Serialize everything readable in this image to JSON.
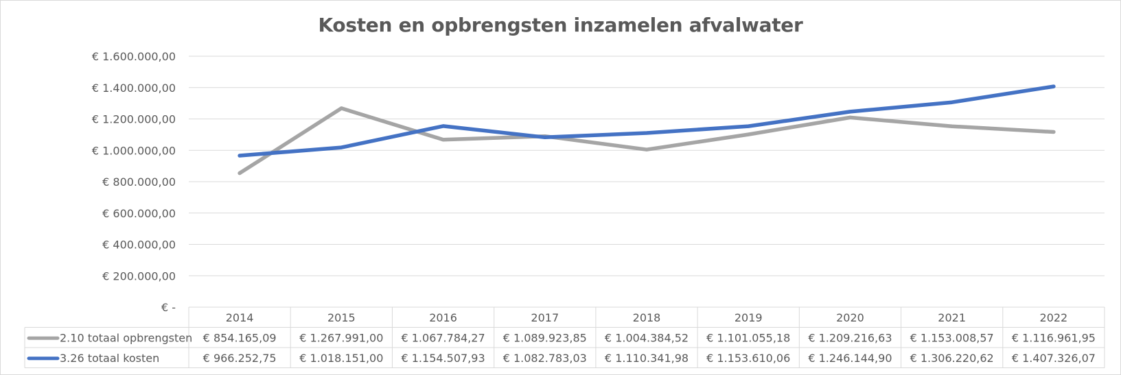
{
  "chart_data": {
    "type": "line",
    "title": "Kosten en opbrengsten inzamelen afvalwater",
    "categories": [
      "2014",
      "2015",
      "2016",
      "2017",
      "2018",
      "2019",
      "2020",
      "2021",
      "2022"
    ],
    "ylim": [
      0,
      1600000
    ],
    "yticks": [
      0,
      200000,
      400000,
      600000,
      800000,
      1000000,
      1200000,
      1400000,
      1600000
    ],
    "ytick_labels": [
      "€ -",
      "€ 200.000,00",
      "€ 400.000,00",
      "€ 600.000,00",
      "€ 800.000,00",
      "€ 1.000.000,00",
      "€ 1.200.000,00",
      "€ 1.400.000,00",
      "€ 1.600.000,00"
    ],
    "grid": true,
    "legend": "data-table",
    "series": [
      {
        "name": "2.10 totaal opbrengsten",
        "color": "#a5a5a5",
        "values": [
          854165.09,
          1267991.0,
          1067784.27,
          1089923.85,
          1004384.52,
          1101055.18,
          1209216.63,
          1153008.57,
          1116961.95
        ],
        "labels": [
          "€ 854.165,09",
          "€ 1.267.991,00",
          "€ 1.067.784,27",
          "€ 1.089.923,85",
          "€ 1.004.384,52",
          "€ 1.101.055,18",
          "€ 1.209.216,63",
          "€ 1.153.008,57",
          "€ 1.116.961,95"
        ]
      },
      {
        "name": "3.26 totaal kosten",
        "color": "#4472c4",
        "values": [
          966252.75,
          1018151.0,
          1154507.93,
          1082783.03,
          1110341.98,
          1153610.06,
          1246144.9,
          1306220.62,
          1407326.07
        ],
        "labels": [
          "€ 966.252,75",
          "€ 1.018.151,00",
          "€ 1.154.507,93",
          "€ 1.082.783,03",
          "€ 1.110.341,98",
          "€ 1.153.610,06",
          "€ 1.246.144,90",
          "€ 1.306.220,62",
          "€ 1.407.326,07"
        ]
      }
    ]
  }
}
